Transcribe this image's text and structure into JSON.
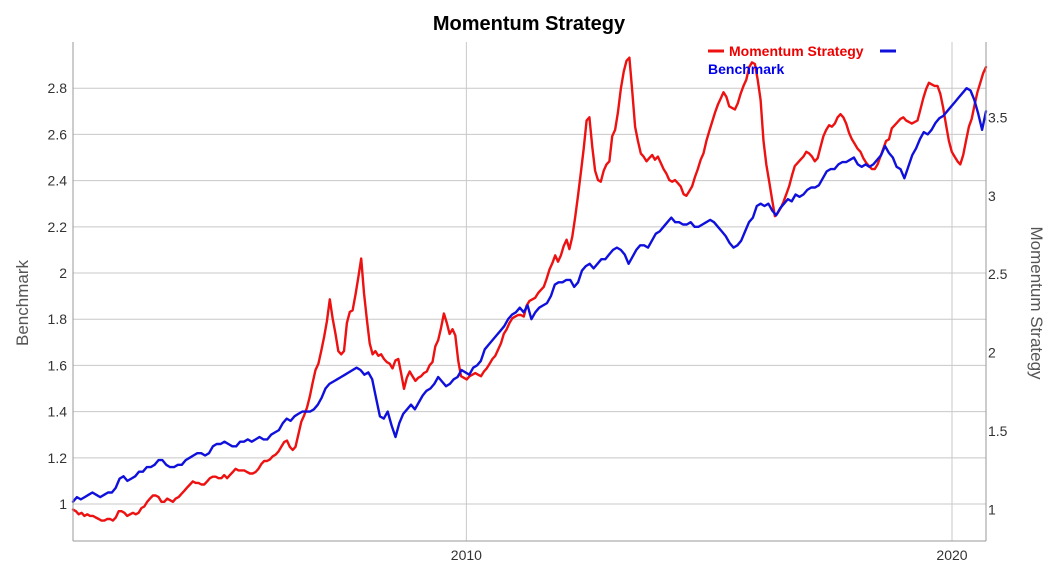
{
  "chart_data": {
    "type": "line",
    "title": "Momentum Strategy",
    "xlabel": "",
    "x_start": 2001.9,
    "x_end": 2020.7,
    "xlim": [
      2001.9,
      2020.7
    ],
    "x_ticks": [
      2010,
      2020
    ],
    "x_tick_labels": [
      "2010",
      "2020"
    ],
    "grid": true,
    "legend_position": "top-right",
    "y_left": {
      "label": "Benchmark",
      "ylim": [
        0.84,
        3.0
      ],
      "ticks": [
        1,
        1.2,
        1.4,
        1.6,
        1.8,
        2,
        2.2,
        2.4,
        2.6,
        2.8
      ],
      "tick_labels": [
        "1",
        "1.2",
        "1.4",
        "1.6",
        "1.8",
        "2",
        "2.2",
        "2.4",
        "2.6",
        "2.8"
      ]
    },
    "y_right": {
      "label": "Momentum Strategy",
      "ylim": [
        0.8,
        3.98
      ],
      "ticks": [
        1,
        1.5,
        2,
        2.5,
        3,
        3.5
      ],
      "tick_labels": [
        "1",
        "1.5",
        "2",
        "2.5",
        "3",
        "3.5"
      ]
    },
    "series": [
      {
        "name": "Momentum Strategy",
        "axis": "right",
        "color": "#ee1111",
        "values": [
          1.0,
          0.99,
          0.97,
          0.98,
          0.96,
          0.97,
          0.96,
          0.96,
          0.95,
          0.94,
          0.93,
          0.93,
          0.94,
          0.94,
          0.93,
          0.95,
          0.99,
          0.99,
          0.98,
          0.96,
          0.97,
          0.98,
          0.97,
          0.98,
          1.01,
          1.02,
          1.05,
          1.07,
          1.09,
          1.09,
          1.08,
          1.05,
          1.05,
          1.07,
          1.06,
          1.05,
          1.07,
          1.08,
          1.1,
          1.12,
          1.14,
          1.16,
          1.18,
          1.17,
          1.17,
          1.16,
          1.16,
          1.18,
          1.2,
          1.21,
          1.21,
          1.2,
          1.2,
          1.22,
          1.2,
          1.22,
          1.24,
          1.26,
          1.25,
          1.25,
          1.25,
          1.24,
          1.23,
          1.23,
          1.24,
          1.26,
          1.29,
          1.31,
          1.31,
          1.32,
          1.34,
          1.35,
          1.37,
          1.4,
          1.43,
          1.44,
          1.4,
          1.38,
          1.4,
          1.48,
          1.56,
          1.6,
          1.65,
          1.72,
          1.81,
          1.89,
          1.93,
          2.01,
          2.1,
          2.2,
          2.34,
          2.22,
          2.12,
          2.01,
          1.99,
          2.01,
          2.19,
          2.26,
          2.27,
          2.37,
          2.48,
          2.6,
          2.38,
          2.21,
          2.06,
          1.99,
          2.01,
          1.98,
          1.99,
          1.96,
          1.94,
          1.93,
          1.9,
          1.95,
          1.96,
          1.87,
          1.77,
          1.84,
          1.88,
          1.85,
          1.82,
          1.84,
          1.85,
          1.87,
          1.88,
          1.92,
          1.94,
          2.04,
          2.08,
          2.16,
          2.25,
          2.19,
          2.12,
          2.15,
          2.11,
          1.95,
          1.85,
          1.84,
          1.83,
          1.85,
          1.86,
          1.87,
          1.86,
          1.85,
          1.88,
          1.9,
          1.93,
          1.96,
          1.98,
          2.02,
          2.06,
          2.12,
          2.15,
          2.19,
          2.22,
          2.23,
          2.24,
          2.24,
          2.23,
          2.3,
          2.33,
          2.34,
          2.35,
          2.38,
          2.4,
          2.42,
          2.47,
          2.53,
          2.57,
          2.62,
          2.58,
          2.62,
          2.68,
          2.72,
          2.66,
          2.74,
          2.86,
          3.0,
          3.15,
          3.3,
          3.48,
          3.5,
          3.31,
          3.16,
          3.1,
          3.09,
          3.16,
          3.2,
          3.22,
          3.38,
          3.42,
          3.53,
          3.68,
          3.79,
          3.86,
          3.88,
          3.67,
          3.44,
          3.35,
          3.27,
          3.25,
          3.22,
          3.24,
          3.26,
          3.23,
          3.25,
          3.21,
          3.17,
          3.14,
          3.1,
          3.09,
          3.1,
          3.08,
          3.06,
          3.01,
          3.0,
          3.03,
          3.06,
          3.12,
          3.17,
          3.23,
          3.27,
          3.35,
          3.41,
          3.47,
          3.53,
          3.58,
          3.62,
          3.66,
          3.63,
          3.57,
          3.56,
          3.55,
          3.59,
          3.65,
          3.7,
          3.74,
          3.82,
          3.85,
          3.84,
          3.74,
          3.61,
          3.35,
          3.2,
          3.09,
          2.98,
          2.87,
          2.89,
          2.92,
          2.96,
          3.01,
          3.06,
          3.13,
          3.19,
          3.21,
          3.23,
          3.25,
          3.28,
          3.27,
          3.25,
          3.22,
          3.24,
          3.31,
          3.38,
          3.42,
          3.45,
          3.44,
          3.46,
          3.5,
          3.52,
          3.5,
          3.46,
          3.4,
          3.36,
          3.33,
          3.3,
          3.28,
          3.24,
          3.21,
          3.19,
          3.17,
          3.17,
          3.2,
          3.25,
          3.3,
          3.35,
          3.36,
          3.43,
          3.45,
          3.47,
          3.49,
          3.5,
          3.48,
          3.47,
          3.46,
          3.47,
          3.48,
          3.55,
          3.62,
          3.68,
          3.72,
          3.71,
          3.7,
          3.7,
          3.65,
          3.56,
          3.45,
          3.35,
          3.28,
          3.25,
          3.22,
          3.2,
          3.26,
          3.35,
          3.44,
          3.49,
          3.58,
          3.66,
          3.72,
          3.78,
          3.82
        ]
      },
      {
        "name": "Benchmark",
        "axis": "left",
        "color": "#1010dd",
        "values": [
          1.01,
          1.03,
          1.02,
          1.03,
          1.04,
          1.05,
          1.04,
          1.03,
          1.04,
          1.05,
          1.05,
          1.07,
          1.11,
          1.12,
          1.1,
          1.11,
          1.12,
          1.14,
          1.14,
          1.16,
          1.16,
          1.17,
          1.19,
          1.19,
          1.17,
          1.16,
          1.16,
          1.17,
          1.17,
          1.19,
          1.2,
          1.21,
          1.22,
          1.22,
          1.21,
          1.22,
          1.25,
          1.26,
          1.26,
          1.27,
          1.26,
          1.25,
          1.25,
          1.27,
          1.27,
          1.28,
          1.27,
          1.28,
          1.29,
          1.28,
          1.28,
          1.3,
          1.31,
          1.32,
          1.35,
          1.37,
          1.36,
          1.38,
          1.39,
          1.4,
          1.4,
          1.4,
          1.41,
          1.43,
          1.46,
          1.5,
          1.52,
          1.53,
          1.54,
          1.55,
          1.56,
          1.57,
          1.58,
          1.59,
          1.58,
          1.56,
          1.57,
          1.54,
          1.46,
          1.38,
          1.37,
          1.4,
          1.34,
          1.29,
          1.35,
          1.39,
          1.41,
          1.43,
          1.41,
          1.44,
          1.47,
          1.49,
          1.5,
          1.52,
          1.55,
          1.53,
          1.51,
          1.52,
          1.54,
          1.55,
          1.58,
          1.57,
          1.56,
          1.59,
          1.6,
          1.62,
          1.67,
          1.69,
          1.71,
          1.73,
          1.75,
          1.77,
          1.8,
          1.82,
          1.83,
          1.85,
          1.83,
          1.86,
          1.8,
          1.83,
          1.85,
          1.86,
          1.87,
          1.9,
          1.95,
          1.96,
          1.96,
          1.97,
          1.97,
          1.94,
          1.96,
          2.01,
          2.03,
          2.04,
          2.02,
          2.04,
          2.06,
          2.06,
          2.08,
          2.1,
          2.11,
          2.1,
          2.08,
          2.04,
          2.07,
          2.1,
          2.12,
          2.12,
          2.11,
          2.14,
          2.17,
          2.18,
          2.2,
          2.22,
          2.24,
          2.22,
          2.22,
          2.21,
          2.21,
          2.22,
          2.2,
          2.2,
          2.21,
          2.22,
          2.23,
          2.22,
          2.2,
          2.18,
          2.16,
          2.13,
          2.11,
          2.12,
          2.14,
          2.18,
          2.22,
          2.24,
          2.29,
          2.3,
          2.29,
          2.3,
          2.27,
          2.25,
          2.28,
          2.3,
          2.32,
          2.31,
          2.34,
          2.33,
          2.34,
          2.36,
          2.37,
          2.37,
          2.38,
          2.41,
          2.44,
          2.45,
          2.45,
          2.47,
          2.48,
          2.48,
          2.49,
          2.5,
          2.47,
          2.46,
          2.47,
          2.46,
          2.47,
          2.49,
          2.51,
          2.55,
          2.52,
          2.5,
          2.46,
          2.45,
          2.41,
          2.46,
          2.51,
          2.54,
          2.58,
          2.61,
          2.6,
          2.62,
          2.65,
          2.67,
          2.68,
          2.7,
          2.72,
          2.74,
          2.76,
          2.78,
          2.8,
          2.79,
          2.75,
          2.69,
          2.62,
          2.7
        ]
      }
    ]
  }
}
